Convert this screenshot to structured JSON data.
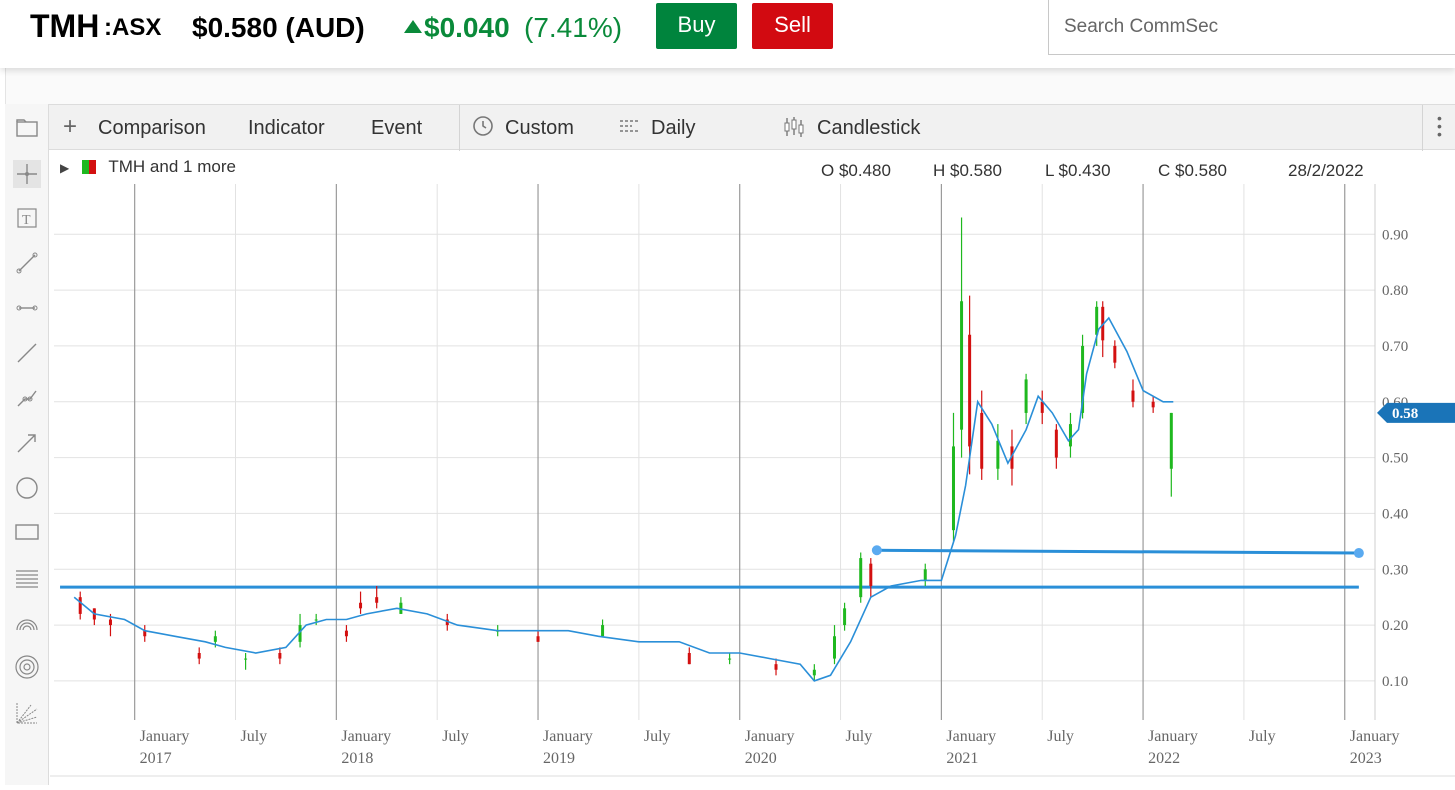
{
  "header": {
    "ticker": "TMH",
    "exchange": ":ASX",
    "price": "$0.580 (AUD)",
    "change": "$0.040",
    "change_pct": "(7.41%)",
    "buy_label": "Buy",
    "sell_label": "Sell",
    "search_placeholder": "Search CommSec",
    "colors": {
      "up": "#0a8a3a",
      "buy": "#00843d",
      "sell": "#d20a11"
    }
  },
  "toolbar": {
    "comparison": "Comparison",
    "indicator": "Indicator",
    "event": "Event",
    "custom": "Custom",
    "daily": "Daily",
    "candlestick": "Candlestick"
  },
  "legend": {
    "label": "TMH and 1 more",
    "open": "O $0.480",
    "high": "H $0.580",
    "low": "L $0.430",
    "close": "C $0.580",
    "date": "28/2/2022"
  },
  "chart_data": {
    "type": "line",
    "ylim": [
      0.03,
      0.99
    ],
    "y_ticks": [
      "0.10",
      "0.20",
      "0.30",
      "0.40",
      "0.50",
      "0.60",
      "0.70",
      "0.80",
      "0.90"
    ],
    "x_ticks": [
      {
        "label": "January",
        "year": "2017",
        "t": 2017.0
      },
      {
        "label": "July",
        "year": "",
        "t": 2017.5
      },
      {
        "label": "January",
        "year": "2018",
        "t": 2018.0
      },
      {
        "label": "July",
        "year": "",
        "t": 2018.5
      },
      {
        "label": "January",
        "year": "2019",
        "t": 2019.0
      },
      {
        "label": "July",
        "year": "",
        "t": 2019.5
      },
      {
        "label": "January",
        "year": "2020",
        "t": 2020.0
      },
      {
        "label": "July",
        "year": "",
        "t": 2020.5
      },
      {
        "label": "January",
        "year": "2021",
        "t": 2021.0
      },
      {
        "label": "July",
        "year": "",
        "t": 2021.5
      },
      {
        "label": "January",
        "year": "2022",
        "t": 2022.0
      },
      {
        "label": "July",
        "year": "",
        "t": 2022.5
      },
      {
        "label": "January",
        "year": "2023",
        "t": 2023.0
      }
    ],
    "xlim": [
      2016.6,
      2023.15
    ],
    "last_price_label": "0.58",
    "last_price": 0.58,
    "moving_average": {
      "color": "#2a8fd8",
      "points": [
        [
          2016.7,
          0.25
        ],
        [
          2016.8,
          0.22
        ],
        [
          2016.95,
          0.21
        ],
        [
          2017.05,
          0.19
        ],
        [
          2017.2,
          0.18
        ],
        [
          2017.35,
          0.17
        ],
        [
          2017.45,
          0.16
        ],
        [
          2017.6,
          0.15
        ],
        [
          2017.75,
          0.16
        ],
        [
          2017.85,
          0.2
        ],
        [
          2017.95,
          0.21
        ],
        [
          2018.05,
          0.21
        ],
        [
          2018.15,
          0.22
        ],
        [
          2018.3,
          0.23
        ],
        [
          2018.45,
          0.22
        ],
        [
          2018.6,
          0.2
        ],
        [
          2018.8,
          0.19
        ],
        [
          2019.0,
          0.19
        ],
        [
          2019.15,
          0.19
        ],
        [
          2019.3,
          0.18
        ],
        [
          2019.5,
          0.17
        ],
        [
          2019.7,
          0.17
        ],
        [
          2019.85,
          0.15
        ],
        [
          2020.0,
          0.15
        ],
        [
          2020.15,
          0.14
        ],
        [
          2020.3,
          0.13
        ],
        [
          2020.37,
          0.1
        ],
        [
          2020.45,
          0.11
        ],
        [
          2020.55,
          0.17
        ],
        [
          2020.65,
          0.25
        ],
        [
          2020.75,
          0.27
        ],
        [
          2020.9,
          0.28
        ],
        [
          2021.0,
          0.28
        ],
        [
          2021.07,
          0.36
        ],
        [
          2021.12,
          0.45
        ],
        [
          2021.18,
          0.6
        ],
        [
          2021.25,
          0.56
        ],
        [
          2021.33,
          0.49
        ],
        [
          2021.42,
          0.55
        ],
        [
          2021.48,
          0.61
        ],
        [
          2021.55,
          0.58
        ],
        [
          2021.63,
          0.53
        ],
        [
          2021.68,
          0.55
        ],
        [
          2021.72,
          0.65
        ],
        [
          2021.78,
          0.73
        ],
        [
          2021.83,
          0.75
        ],
        [
          2021.92,
          0.69
        ],
        [
          2022.0,
          0.62
        ],
        [
          2022.1,
          0.6
        ],
        [
          2022.15,
          0.6
        ]
      ]
    },
    "candles": {
      "up_color": "#1fb81f",
      "down_color": "#d31010",
      "points": [
        [
          2016.73,
          0.25,
          0.22,
          0.26,
          0.21
        ],
        [
          2016.8,
          0.23,
          0.21,
          0.23,
          0.2
        ],
        [
          2016.88,
          0.21,
          0.2,
          0.22,
          0.18
        ],
        [
          2017.05,
          0.19,
          0.18,
          0.2,
          0.17
        ],
        [
          2017.32,
          0.15,
          0.14,
          0.16,
          0.13
        ],
        [
          2017.4,
          0.17,
          0.18,
          0.19,
          0.16
        ],
        [
          2017.55,
          0.14,
          0.14,
          0.15,
          0.12
        ],
        [
          2017.72,
          0.15,
          0.14,
          0.16,
          0.13
        ],
        [
          2017.82,
          0.17,
          0.2,
          0.22,
          0.16
        ],
        [
          2017.9,
          0.21,
          0.21,
          0.22,
          0.2
        ],
        [
          2018.05,
          0.19,
          0.18,
          0.2,
          0.17
        ],
        [
          2018.12,
          0.24,
          0.23,
          0.26,
          0.22
        ],
        [
          2018.2,
          0.25,
          0.24,
          0.27,
          0.23
        ],
        [
          2018.32,
          0.22,
          0.24,
          0.25,
          0.22
        ],
        [
          2018.55,
          0.21,
          0.2,
          0.22,
          0.19
        ],
        [
          2018.8,
          0.19,
          0.19,
          0.2,
          0.18
        ],
        [
          2019.0,
          0.18,
          0.17,
          0.19,
          0.17
        ],
        [
          2019.32,
          0.18,
          0.2,
          0.21,
          0.18
        ],
        [
          2019.75,
          0.15,
          0.13,
          0.16,
          0.13
        ],
        [
          2019.95,
          0.14,
          0.14,
          0.15,
          0.13
        ],
        [
          2020.18,
          0.13,
          0.12,
          0.14,
          0.11
        ],
        [
          2020.37,
          0.11,
          0.12,
          0.13,
          0.1
        ],
        [
          2020.47,
          0.14,
          0.18,
          0.2,
          0.13
        ],
        [
          2020.52,
          0.2,
          0.23,
          0.24,
          0.19
        ],
        [
          2020.6,
          0.25,
          0.32,
          0.33,
          0.24
        ],
        [
          2020.65,
          0.31,
          0.27,
          0.32,
          0.25
        ],
        [
          2020.92,
          0.28,
          0.3,
          0.31,
          0.27
        ],
        [
          2021.06,
          0.37,
          0.52,
          0.58,
          0.35
        ],
        [
          2021.1,
          0.55,
          0.78,
          0.93,
          0.5
        ],
        [
          2021.14,
          0.72,
          0.52,
          0.79,
          0.47
        ],
        [
          2021.2,
          0.58,
          0.48,
          0.62,
          0.46
        ],
        [
          2021.28,
          0.48,
          0.53,
          0.56,
          0.46
        ],
        [
          2021.35,
          0.52,
          0.48,
          0.55,
          0.45
        ],
        [
          2021.42,
          0.58,
          0.64,
          0.65,
          0.56
        ],
        [
          2021.5,
          0.6,
          0.58,
          0.62,
          0.56
        ],
        [
          2021.57,
          0.55,
          0.5,
          0.56,
          0.48
        ],
        [
          2021.64,
          0.52,
          0.56,
          0.58,
          0.5
        ],
        [
          2021.7,
          0.58,
          0.7,
          0.72,
          0.57
        ],
        [
          2021.77,
          0.72,
          0.77,
          0.78,
          0.7
        ],
        [
          2021.8,
          0.77,
          0.71,
          0.78,
          0.68
        ],
        [
          2021.86,
          0.7,
          0.67,
          0.71,
          0.66
        ],
        [
          2021.95,
          0.62,
          0.6,
          0.64,
          0.59
        ],
        [
          2022.05,
          0.6,
          0.59,
          0.61,
          0.58
        ],
        [
          2022.14,
          0.48,
          0.58,
          0.58,
          0.43
        ]
      ]
    },
    "trend_lines": [
      {
        "from": [
          2016.63,
          0.268
        ],
        "to": [
          2023.07,
          0.268
        ],
        "handles": false
      },
      {
        "from": [
          2020.68,
          0.334
        ],
        "to": [
          2023.07,
          0.329
        ],
        "handles": true
      }
    ]
  }
}
